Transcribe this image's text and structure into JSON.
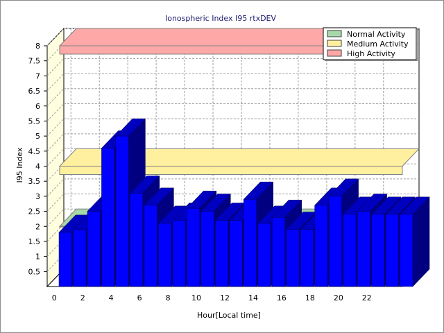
{
  "chart_data": {
    "type": "bar",
    "title": "Ionospheric Index I95 rtxDEV",
    "xlabel": "Hour[Local time]",
    "ylabel": "I95 Index",
    "ylim": [
      0,
      8
    ],
    "y_ticks": [
      0.5,
      1,
      1.5,
      2,
      2.5,
      3,
      3.5,
      4,
      4.5,
      5,
      5.5,
      6,
      6.5,
      7,
      7.5,
      8
    ],
    "x_ticks": [
      0,
      2,
      4,
      6,
      8,
      10,
      12,
      14,
      16,
      18,
      20,
      22
    ],
    "grid": true,
    "legend_position": "top-right",
    "categories": [
      0,
      1,
      2,
      3,
      4,
      5,
      6,
      7,
      8,
      9,
      10,
      11,
      12,
      13,
      14,
      15,
      16,
      17,
      18,
      19,
      20,
      21,
      22,
      23,
      24
    ],
    "values": [
      1.8,
      1.9,
      2.5,
      4.6,
      5.0,
      3.1,
      2.7,
      2.1,
      2.2,
      2.6,
      2.5,
      2.2,
      2.2,
      2.9,
      2.1,
      2.3,
      1.9,
      1.9,
      2.7,
      3.0,
      2.4,
      2.5,
      2.4,
      2.4,
      2.4
    ],
    "bar_color": "#0000ff",
    "bands": [
      {
        "name": "Normal Activity",
        "from": 0,
        "to": 2,
        "color": "#a8d8a8"
      },
      {
        "name": "Medium Activity",
        "from": 2,
        "to": 4,
        "color": "#fff0a0"
      },
      {
        "name": "High Activity",
        "from": 4,
        "to": 8,
        "color": "#ffa8a8"
      }
    ]
  }
}
